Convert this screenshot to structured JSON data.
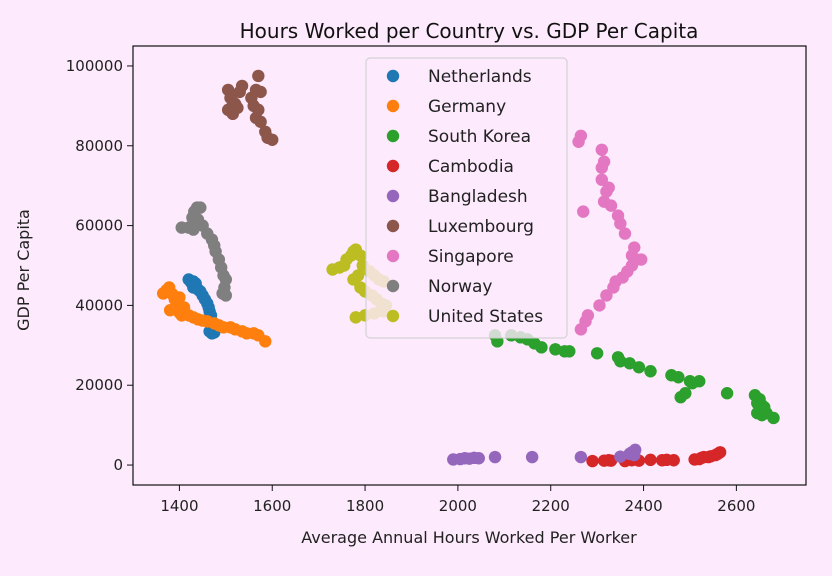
{
  "chart_data": {
    "type": "scatter",
    "title": "Hours Worked per Country vs. GDP Per Capita",
    "xlabel": "Average Annual Hours Worked Per Worker",
    "ylabel": "GDP Per Capita",
    "xlim": [
      1300,
      2750
    ],
    "ylim": [
      -5000,
      105000
    ],
    "xticks": [
      1400,
      1600,
      1800,
      2000,
      2200,
      2400,
      2600
    ],
    "yticks": [
      0,
      20000,
      40000,
      60000,
      80000,
      100000
    ],
    "grid": false,
    "legend_position": "upper-center",
    "series": [
      {
        "name": "Netherlands",
        "color": "#1f77b4",
        "points": [
          [
            1420,
            46500
          ],
          [
            1425,
            45800
          ],
          [
            1430,
            46000
          ],
          [
            1435,
            45500
          ],
          [
            1440,
            44000
          ],
          [
            1445,
            43500
          ],
          [
            1450,
            42500
          ],
          [
            1455,
            41500
          ],
          [
            1460,
            40500
          ],
          [
            1463,
            39500
          ],
          [
            1465,
            38500
          ],
          [
            1468,
            37500
          ],
          [
            1470,
            36000
          ],
          [
            1472,
            34500
          ],
          [
            1465,
            33500
          ],
          [
            1470,
            33000
          ],
          [
            1475,
            33200
          ],
          [
            1430,
            44500
          ]
        ]
      },
      {
        "name": "Germany",
        "color": "#ff7f0e",
        "points": [
          [
            1365,
            43000
          ],
          [
            1372,
            43800
          ],
          [
            1378,
            44500
          ],
          [
            1385,
            42800
          ],
          [
            1390,
            41500
          ],
          [
            1395,
            40000
          ],
          [
            1380,
            38800
          ],
          [
            1400,
            38200
          ],
          [
            1405,
            37500
          ],
          [
            1420,
            37500
          ],
          [
            1430,
            37000
          ],
          [
            1440,
            36500
          ],
          [
            1450,
            36200
          ],
          [
            1460,
            36000
          ],
          [
            1475,
            35500
          ],
          [
            1485,
            35000
          ],
          [
            1495,
            34500
          ],
          [
            1510,
            34500
          ],
          [
            1520,
            34000
          ],
          [
            1535,
            33500
          ],
          [
            1545,
            33000
          ],
          [
            1560,
            33000
          ],
          [
            1570,
            32500
          ],
          [
            1585,
            31000
          ],
          [
            1400,
            42000
          ],
          [
            1410,
            39500
          ]
        ]
      },
      {
        "name": "South Korea",
        "color": "#2ca02c",
        "points": [
          [
            2080,
            32500
          ],
          [
            2085,
            31000
          ],
          [
            2115,
            32500
          ],
          [
            2135,
            32000
          ],
          [
            2150,
            31500
          ],
          [
            2165,
            30500
          ],
          [
            2180,
            29500
          ],
          [
            2210,
            29000
          ],
          [
            2230,
            28500
          ],
          [
            2240,
            28500
          ],
          [
            2300,
            28000
          ],
          [
            2345,
            27000
          ],
          [
            2350,
            26000
          ],
          [
            2370,
            25500
          ],
          [
            2390,
            24500
          ],
          [
            2415,
            23500
          ],
          [
            2460,
            22500
          ],
          [
            2475,
            22000
          ],
          [
            2500,
            21000
          ],
          [
            2505,
            20500
          ],
          [
            2520,
            21000
          ],
          [
            2490,
            18000
          ],
          [
            2480,
            17000
          ],
          [
            2580,
            18000
          ],
          [
            2640,
            17500
          ],
          [
            2650,
            16500
          ],
          [
            2645,
            15500
          ],
          [
            2655,
            15000
          ],
          [
            2660,
            14500
          ],
          [
            2645,
            13000
          ],
          [
            2655,
            12500
          ],
          [
            2665,
            13000
          ],
          [
            2680,
            11800
          ]
        ]
      },
      {
        "name": "Cambodia",
        "color": "#d62728",
        "points": [
          [
            2290,
            1000
          ],
          [
            2315,
            1100
          ],
          [
            2325,
            1200
          ],
          [
            2330,
            1100
          ],
          [
            2360,
            1000
          ],
          [
            2375,
            1200
          ],
          [
            2390,
            1100
          ],
          [
            2415,
            1300
          ],
          [
            2440,
            1200
          ],
          [
            2450,
            1300
          ],
          [
            2465,
            1200
          ],
          [
            2510,
            1400
          ],
          [
            2520,
            1500
          ],
          [
            2525,
            1800
          ],
          [
            2530,
            2000
          ],
          [
            2545,
            2200
          ],
          [
            2555,
            2500
          ],
          [
            2560,
            2800
          ],
          [
            2565,
            3200
          ],
          [
            2540,
            2000
          ]
        ]
      },
      {
        "name": "Bangladesh",
        "color": "#9467bd",
        "points": [
          [
            1990,
            1400
          ],
          [
            2005,
            1500
          ],
          [
            2015,
            1700
          ],
          [
            2025,
            1600
          ],
          [
            2035,
            1800
          ],
          [
            2045,
            1700
          ],
          [
            2080,
            2000
          ],
          [
            2160,
            2000
          ],
          [
            2265,
            2000
          ],
          [
            2350,
            2100
          ],
          [
            2370,
            2800
          ],
          [
            2380,
            2500
          ],
          [
            2375,
            3200
          ],
          [
            2382,
            3800
          ]
        ]
      },
      {
        "name": "Luxembourg",
        "color": "#8c564b",
        "points": [
          [
            1505,
            94000
          ],
          [
            1510,
            92000
          ],
          [
            1515,
            91000
          ],
          [
            1520,
            90500
          ],
          [
            1525,
            89500
          ],
          [
            1530,
            93500
          ],
          [
            1535,
            95000
          ],
          [
            1505,
            89000
          ],
          [
            1515,
            88000
          ],
          [
            1560,
            90000
          ],
          [
            1555,
            92000
          ],
          [
            1565,
            94000
          ],
          [
            1570,
            97500
          ],
          [
            1575,
            93500
          ],
          [
            1570,
            89000
          ],
          [
            1565,
            87000
          ],
          [
            1575,
            86000
          ],
          [
            1585,
            83500
          ],
          [
            1590,
            82000
          ],
          [
            1600,
            81500
          ]
        ]
      },
      {
        "name": "Singapore",
        "color": "#e377c2",
        "points": [
          [
            2265,
            34000
          ],
          [
            2275,
            36000
          ],
          [
            2280,
            37500
          ],
          [
            2305,
            40000
          ],
          [
            2320,
            42500
          ],
          [
            2335,
            44500
          ],
          [
            2340,
            46000
          ],
          [
            2355,
            47000
          ],
          [
            2365,
            48500
          ],
          [
            2375,
            50000
          ],
          [
            2385,
            51500
          ],
          [
            2395,
            51500
          ],
          [
            2375,
            52500
          ],
          [
            2380,
            54500
          ],
          [
            2360,
            58000
          ],
          [
            2350,
            60500
          ],
          [
            2345,
            62500
          ],
          [
            2330,
            65000
          ],
          [
            2315,
            66000
          ],
          [
            2320,
            68500
          ],
          [
            2310,
            71500
          ],
          [
            2310,
            74500
          ],
          [
            2315,
            76000
          ],
          [
            2310,
            79000
          ],
          [
            2270,
            63500
          ],
          [
            2260,
            81000
          ],
          [
            2265,
            82500
          ],
          [
            2325,
            69500
          ]
        ]
      },
      {
        "name": "Norway",
        "color": "#7f7f7f",
        "points": [
          [
            1405,
            59500
          ],
          [
            1420,
            59500
          ],
          [
            1428,
            62000
          ],
          [
            1432,
            63500
          ],
          [
            1438,
            64500
          ],
          [
            1445,
            64500
          ],
          [
            1440,
            61500
          ],
          [
            1450,
            60000
          ],
          [
            1460,
            58000
          ],
          [
            1470,
            56500
          ],
          [
            1475,
            55000
          ],
          [
            1478,
            53500
          ],
          [
            1485,
            51500
          ],
          [
            1490,
            49500
          ],
          [
            1495,
            47500
          ],
          [
            1500,
            46500
          ],
          [
            1497,
            44500
          ],
          [
            1493,
            43000
          ],
          [
            1500,
            42500
          ],
          [
            1430,
            59000
          ]
        ]
      },
      {
        "name": "United States",
        "color": "#bcbd22",
        "points": [
          [
            1730,
            49000
          ],
          [
            1745,
            49500
          ],
          [
            1755,
            50000
          ],
          [
            1760,
            51500
          ],
          [
            1770,
            52500
          ],
          [
            1775,
            53500
          ],
          [
            1780,
            54000
          ],
          [
            1790,
            52500
          ],
          [
            1795,
            50000
          ],
          [
            1810,
            48500
          ],
          [
            1820,
            47500
          ],
          [
            1830,
            46500
          ],
          [
            1840,
            46000
          ],
          [
            1785,
            47500
          ],
          [
            1775,
            46500
          ],
          [
            1790,
            44500
          ],
          [
            1800,
            43500
          ],
          [
            1815,
            42500
          ],
          [
            1825,
            41500
          ],
          [
            1835,
            40500
          ],
          [
            1845,
            40000
          ],
          [
            1840,
            38500
          ],
          [
            1820,
            38000
          ],
          [
            1800,
            37500
          ],
          [
            1780,
            37000
          ]
        ]
      }
    ]
  }
}
